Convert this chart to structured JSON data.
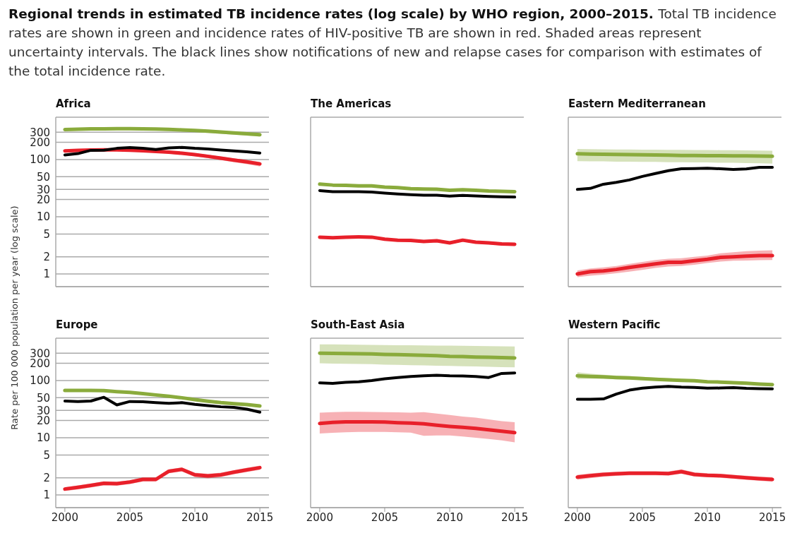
{
  "chart_data": [
    {
      "type": "line",
      "title": "Africa",
      "annotations": [
        "Regional trends in estimated TB incidence rates (log scale) by WHO region, 2000–2015.",
        "Total TB incidence rates are shown in green and incidence rates of HIV-positive TB are shown in red. Shaded areas represent uncertainty intervals. The black lines show notifications of new and relapse cases for comparison with estimates of the total incidence rate."
      ],
      "ylabel": "Rate per 100 000 population per year (log scale)",
      "log": true,
      "grid": "y",
      "tick_labels": "y",
      "xlim": [
        1999.3,
        2015.7
      ],
      "xticks": [
        2000,
        2005,
        2010,
        2015
      ],
      "ylim": [
        0.6,
        550
      ],
      "yticks": [
        1,
        2,
        5,
        10,
        20,
        30,
        50,
        100,
        200,
        300
      ],
      "x": [
        2000,
        2001,
        2002,
        2003,
        2004,
        2005,
        2006,
        2007,
        2008,
        2009,
        2010,
        2011,
        2012,
        2013,
        2014,
        2015
      ],
      "series": [
        {
          "color": "#8aab3c",
          "values": [
            335,
            340,
            343,
            345,
            347,
            347,
            345,
            342,
            337,
            330,
            322,
            313,
            303,
            293,
            282,
            272
          ],
          "lower": [
            315,
            320,
            323,
            325,
            327,
            327,
            325,
            322,
            317,
            310,
            302,
            293,
            283,
            273,
            262,
            252
          ],
          "upper": [
            345,
            350,
            353,
            355,
            357,
            357,
            355,
            352,
            347,
            340,
            332,
            323,
            313,
            303,
            292,
            282
          ]
        },
        {
          "color": "#e8202a",
          "values": [
            142,
            145,
            147,
            148,
            148,
            146,
            143,
            139,
            135,
            129,
            122,
            114,
            106,
            98,
            91,
            84
          ],
          "lower": [
            135,
            138,
            140,
            141,
            141,
            139,
            136,
            132,
            127,
            121,
            114,
            106,
            98,
            90,
            83,
            76
          ],
          "upper": [
            150,
            152,
            154,
            155,
            155,
            153,
            150,
            146,
            142,
            136,
            129,
            121,
            113,
            105,
            98,
            91
          ]
        },
        {
          "color": "#000000",
          "values": [
            120,
            127,
            145,
            146,
            157,
            162,
            157,
            150,
            160,
            163,
            157,
            153,
            147,
            142,
            137,
            130
          ]
        }
      ]
    },
    {
      "type": "line",
      "title": "The Americas",
      "log": true,
      "grid": "y",
      "tick_labels": false,
      "xlim": [
        1999.3,
        2015.7
      ],
      "xticks": [
        2000,
        2005,
        2010,
        2015
      ],
      "ylim": [
        0.6,
        550
      ],
      "yticks": [
        1,
        2,
        5,
        10,
        20,
        30,
        50,
        100,
        200,
        300
      ],
      "x": [
        2000,
        2001,
        2002,
        2003,
        2004,
        2005,
        2006,
        2007,
        2008,
        2009,
        2010,
        2011,
        2012,
        2013,
        2014,
        2015
      ],
      "series": [
        {
          "color": "#8aab3c",
          "values": [
            37.2,
            35.8,
            35.4,
            34.7,
            34.7,
            33.1,
            32.3,
            31,
            30.5,
            30.2,
            29.1,
            29.6,
            29,
            28.2,
            27.8,
            27.5
          ]
        },
        {
          "color": "#e8202a",
          "values": [
            4.4,
            4.3,
            4.4,
            4.45,
            4.4,
            4.05,
            3.9,
            3.85,
            3.7,
            3.8,
            3.5,
            3.9,
            3.6,
            3.5,
            3.35,
            3.3
          ],
          "lower": [
            4.2,
            4.1,
            4.2,
            4.25,
            4.2,
            3.85,
            3.7,
            3.65,
            3.5,
            3.6,
            3.3,
            3.7,
            3.4,
            3.3,
            3.15,
            3.1
          ],
          "upper": [
            4.6,
            4.5,
            4.6,
            4.65,
            4.6,
            4.25,
            4.1,
            4.05,
            3.9,
            4,
            3.7,
            4.1,
            3.8,
            3.7,
            3.55,
            3.5
          ]
        },
        {
          "color": "#000000",
          "values": [
            28.7,
            27.5,
            27.5,
            27.5,
            27,
            26,
            25,
            24.3,
            23.8,
            23.8,
            22.9,
            23.6,
            23.2,
            22.7,
            22.3,
            22.1
          ]
        }
      ]
    },
    {
      "type": "line",
      "title": "Eastern Mediterranean",
      "log": true,
      "grid": "y",
      "tick_labels": false,
      "xlim": [
        1999.3,
        2015.7
      ],
      "xticks": [
        2000,
        2005,
        2010,
        2015
      ],
      "ylim": [
        0.6,
        550
      ],
      "yticks": [
        1,
        2,
        5,
        10,
        20,
        30,
        50,
        100,
        200,
        300
      ],
      "x": [
        2000,
        2001,
        2002,
        2003,
        2004,
        2005,
        2006,
        2007,
        2008,
        2009,
        2010,
        2011,
        2012,
        2013,
        2014,
        2015
      ],
      "series": [
        {
          "color": "#8aab3c",
          "values": [
            126,
            125,
            124,
            123,
            122,
            121,
            120,
            119,
            118,
            118,
            117,
            117,
            116,
            116,
            115,
            114
          ],
          "lower": [
            94,
            93,
            93,
            92,
            92,
            91,
            91,
            90,
            90,
            89,
            89,
            88,
            88,
            87,
            86,
            85
          ],
          "upper": [
            153,
            152,
            151,
            150,
            150,
            149,
            149,
            148,
            148,
            147,
            147,
            146,
            146,
            145,
            144,
            143
          ]
        },
        {
          "color": "#e8202a",
          "values": [
            1.0,
            1.1,
            1.13,
            1.2,
            1.3,
            1.4,
            1.5,
            1.6,
            1.6,
            1.7,
            1.8,
            1.95,
            2.0,
            2.05,
            2.1,
            2.1
          ],
          "lower": [
            0.88,
            0.93,
            0.97,
            1.03,
            1.1,
            1.18,
            1.27,
            1.35,
            1.38,
            1.45,
            1.55,
            1.65,
            1.7,
            1.72,
            1.74,
            1.75
          ],
          "upper": [
            1.15,
            1.25,
            1.3,
            1.38,
            1.5,
            1.62,
            1.75,
            1.85,
            1.88,
            2.0,
            2.1,
            2.3,
            2.4,
            2.5,
            2.55,
            2.6
          ]
        },
        {
          "color": "#000000",
          "values": [
            30,
            31.3,
            37,
            40,
            44,
            50.7,
            57,
            64,
            69,
            69.5,
            70.5,
            69,
            67.3,
            68.5,
            73,
            73
          ]
        }
      ]
    },
    {
      "type": "line",
      "title": "Europe",
      "log": true,
      "grid": "y",
      "xlim": [
        1999.3,
        2015.7
      ],
      "xticks": [
        2000,
        2005,
        2010,
        2015
      ],
      "ylim": [
        0.6,
        550
      ],
      "yticks": [
        1,
        2,
        5,
        10,
        20,
        30,
        50,
        100,
        200,
        300
      ],
      "x": [
        2000,
        2001,
        2002,
        2003,
        2004,
        2005,
        2006,
        2007,
        2008,
        2009,
        2010,
        2011,
        2012,
        2013,
        2014,
        2015
      ],
      "series": [
        {
          "color": "#8aab3c",
          "values": [
            67,
            67,
            67,
            66.5,
            64,
            62,
            59,
            56,
            53,
            50,
            46.5,
            43.5,
            41,
            39.5,
            38,
            36
          ]
        },
        {
          "color": "#e8202a",
          "values": [
            1.27,
            1.36,
            1.47,
            1.6,
            1.58,
            1.68,
            1.87,
            1.87,
            2.6,
            2.8,
            2.25,
            2.15,
            2.25,
            2.5,
            2.75,
            3.0
          ],
          "lower": [
            1.17,
            1.25,
            1.35,
            1.47,
            1.45,
            1.55,
            1.72,
            1.72,
            2.4,
            2.58,
            2.05,
            1.95,
            2.05,
            2.3,
            2.52,
            2.75
          ],
          "upper": [
            1.37,
            1.47,
            1.59,
            1.73,
            1.71,
            1.81,
            2.02,
            2.02,
            2.8,
            3.02,
            2.45,
            2.35,
            2.45,
            2.7,
            2.98,
            3.25
          ]
        },
        {
          "color": "#000000",
          "values": [
            43.8,
            43,
            43.8,
            51,
            37.5,
            43,
            42.5,
            41,
            40,
            41,
            38.3,
            36.5,
            34.8,
            34,
            31.6,
            28
          ]
        }
      ]
    },
    {
      "type": "line",
      "title": "South-East Asia",
      "log": true,
      "grid": "y",
      "tick_labels": "x",
      "xlim": [
        1999.3,
        2015.7
      ],
      "xticks": [
        2000,
        2005,
        2010,
        2015
      ],
      "ylim": [
        0.6,
        550
      ],
      "yticks": [
        1,
        2,
        5,
        10,
        20,
        30,
        50,
        100,
        200,
        300
      ],
      "x": [
        2000,
        2001,
        2002,
        2003,
        2004,
        2005,
        2006,
        2007,
        2008,
        2009,
        2010,
        2011,
        2012,
        2013,
        2014,
        2015
      ],
      "series": [
        {
          "color": "#8aab3c",
          "values": [
            300,
            298,
            297,
            295,
            292,
            287,
            284,
            280,
            276,
            272,
            265,
            262,
            258,
            255,
            252,
            249
          ],
          "lower": [
            200,
            198,
            197,
            195,
            193,
            190,
            188,
            186,
            184,
            182,
            180,
            178,
            176,
            174,
            172,
            170
          ],
          "upper": [
            430,
            428,
            426,
            423,
            420,
            417,
            415,
            413,
            411,
            409,
            407,
            405,
            402,
            399,
            396,
            393
          ]
        },
        {
          "color": "#e8202a",
          "values": [
            17.8,
            18.5,
            19,
            19,
            19,
            18.8,
            18.3,
            18,
            17.5,
            16.6,
            15.8,
            15.2,
            14.6,
            13.8,
            13,
            12.3
          ],
          "lower": [
            11.9,
            12.2,
            12.5,
            12.6,
            12.6,
            12.6,
            12.5,
            12.3,
            10.8,
            11,
            11,
            10.5,
            10,
            9.5,
            9,
            8.3
          ],
          "upper": [
            27.4,
            28,
            28.5,
            28.5,
            28.3,
            28,
            27.8,
            27.5,
            28,
            26.5,
            25,
            23.5,
            22.5,
            21,
            19.5,
            18.7
          ]
        },
        {
          "color": "#000000",
          "values": [
            91,
            89,
            93,
            95,
            100,
            107,
            113,
            118,
            121,
            124,
            121,
            120,
            118,
            113,
            133,
            136
          ]
        }
      ]
    },
    {
      "type": "line",
      "title": "Western Pacific",
      "log": true,
      "grid": "y",
      "tick_labels": "x",
      "xlim": [
        1999.3,
        2015.7
      ],
      "xticks": [
        2000,
        2005,
        2010,
        2015
      ],
      "ylim": [
        0.6,
        550
      ],
      "yticks": [
        1,
        2,
        5,
        10,
        20,
        30,
        50,
        100,
        200,
        300
      ],
      "x": [
        2000,
        2001,
        2002,
        2003,
        2004,
        2005,
        2006,
        2007,
        2008,
        2009,
        2010,
        2011,
        2012,
        2013,
        2014,
        2015
      ],
      "series": [
        {
          "color": "#8aab3c",
          "values": [
            121,
            118,
            116,
            113,
            111,
            108,
            105,
            103,
            101,
            99,
            95,
            94,
            92,
            90,
            87,
            85
          ],
          "lower": [
            106,
            108,
            107,
            105,
            104,
            102,
            100,
            98,
            96,
            94,
            92,
            90,
            88,
            86,
            83,
            81
          ],
          "upper": [
            140,
            132,
            126,
            122,
            119,
            116,
            113,
            110,
            107,
            104,
            101,
            99,
            97,
            94,
            91,
            89
          ]
        },
        {
          "color": "#e8202a",
          "values": [
            2.05,
            2.17,
            2.28,
            2.34,
            2.4,
            2.4,
            2.4,
            2.37,
            2.56,
            2.28,
            2.2,
            2.17,
            2.08,
            2.0,
            1.93,
            1.87
          ],
          "lower": [
            1.85,
            1.97,
            2.08,
            2.15,
            2.2,
            2.2,
            2.2,
            2.18,
            2.35,
            2.1,
            2.03,
            2.0,
            1.92,
            1.84,
            1.77,
            1.7
          ],
          "upper": [
            2.25,
            2.38,
            2.48,
            2.54,
            2.6,
            2.6,
            2.6,
            2.57,
            2.8,
            2.48,
            2.4,
            2.35,
            2.25,
            2.17,
            2.1,
            2.05
          ]
        },
        {
          "color": "#000000",
          "values": [
            47,
            47,
            47.7,
            58,
            68,
            73.5,
            77,
            79,
            77,
            76,
            73.5,
            74,
            75,
            73,
            72,
            71.5
          ]
        }
      ]
    }
  ]
}
